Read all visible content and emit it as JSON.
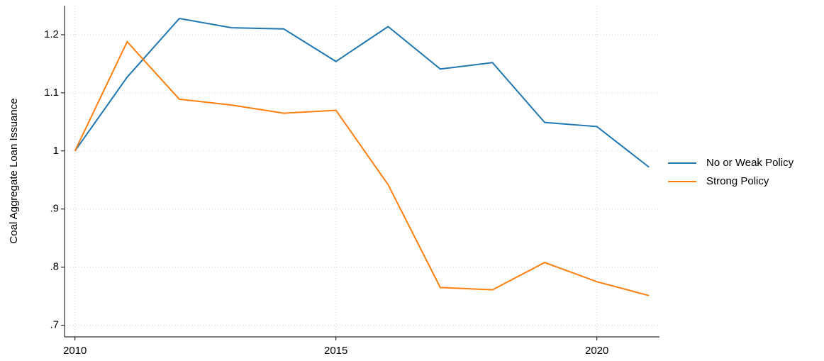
{
  "chart_data": {
    "type": "line",
    "ylabel": "Coal Aggregate Loan Issuance",
    "x": [
      2010,
      2011,
      2012,
      2013,
      2014,
      2015,
      2016,
      2017,
      2018,
      2019,
      2020,
      2021
    ],
    "series": [
      {
        "name": "No or Weak Policy",
        "color": "#1f77b4",
        "values": [
          1.0,
          1.127,
          1.228,
          1.212,
          1.21,
          1.154,
          1.214,
          1.141,
          1.152,
          1.049,
          1.042,
          0.972
        ]
      },
      {
        "name": "Strong Policy",
        "color": "#ff7f0e",
        "values": [
          1.0,
          1.188,
          1.089,
          1.079,
          1.065,
          1.07,
          0.942,
          0.765,
          0.761,
          0.808,
          0.775,
          0.751
        ]
      }
    ],
    "xlim": [
      2009.8,
      2021.2
    ],
    "xticks": [
      2010,
      2015,
      2020
    ],
    "ylim": [
      0.68,
      1.25
    ],
    "yticks": [
      {
        "value": 0.7,
        "label": ".7"
      },
      {
        "value": 0.8,
        "label": ".8"
      },
      {
        "value": 0.9,
        "label": ".9"
      },
      1,
      1.1,
      1.2
    ],
    "grid": true,
    "legend": "right"
  }
}
